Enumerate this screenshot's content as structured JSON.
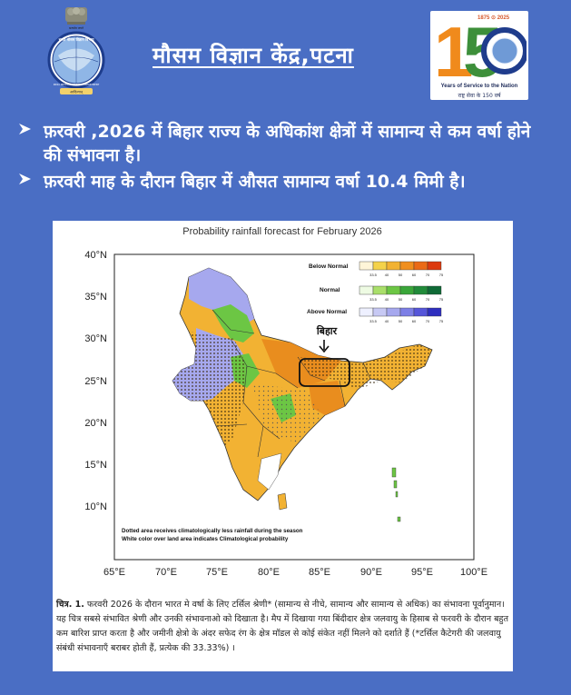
{
  "header": {
    "title": "मौसम विज्ञान केंद्र,पटना",
    "emblem_motto": "सत्यमेव जयते",
    "logo_text_top": "भारत मौसम विज्ञान विभाग",
    "logo_text_bottom": "INDIA METEOROLOGICAL DEPARTMENT",
    "logo_hindi_tag": "आदित्यात्",
    "badge_number": "150",
    "badge_years": "1875 ⊙ 2025",
    "badge_subtitle": "Years of Service to the Nation",
    "badge_hindi": "राष्ट्र सेवा के 150 वर्ष"
  },
  "bullets": [
    {
      "text": "फ़रवरी ,2026 में बिहार राज्य के अधिकांश क्षेत्रों में सामान्य से कम वर्षा होने की संभावना है।"
    },
    {
      "text": "फ़रवरी माह के दौरान बिहार में औसत सामान्य वर्षा 10.4 मिमी है।"
    }
  ],
  "map": {
    "title": "Probability rainfall forecast for February 2026",
    "bihar_label": "बिहार",
    "lat_labels": [
      "40°N",
      "35°N",
      "30°N",
      "25°N",
      "20°N",
      "15°N",
      "10°N"
    ],
    "lon_labels": [
      "65°E",
      "70°E",
      "75°E",
      "80°E",
      "85°E",
      "90°E",
      "95°E",
      "100°E"
    ],
    "legend": [
      {
        "label": "Below Normal",
        "ticks": [
          "33.5",
          "40",
          "50",
          "60",
          "70",
          "75"
        ],
        "colors": [
          "#fff5d8",
          "#f4d24a",
          "#f2b233",
          "#f08f1e",
          "#ea6a16",
          "#dc3a0e"
        ]
      },
      {
        "label": "Normal",
        "ticks": [
          "33.5",
          "40",
          "50",
          "60",
          "70",
          "75"
        ],
        "colors": [
          "#eefbe3",
          "#a9df6a",
          "#6cc644",
          "#3aa63a",
          "#218b3a",
          "#0f6a36"
        ]
      },
      {
        "label": "Above Normal",
        "ticks": [
          "33.5",
          "40",
          "50",
          "60",
          "70",
          "75"
        ],
        "colors": [
          "#eef0ff",
          "#c7c9f4",
          "#a6a8ee",
          "#7d7fe6",
          "#5656d9",
          "#2f2fbf"
        ]
      }
    ],
    "note_line1": "Dotted area receives climatologically less rainfall during the season",
    "note_line2": "White color over land area indicates Climatological probability",
    "colors": {
      "below": "#f2b233",
      "below_dark": "#e98d1e",
      "normal": "#6cc644",
      "above": "#a6a8ee",
      "boundary": "#333333"
    }
  },
  "caption": {
    "label": "चित्र. 1.",
    "text": "फरवरी 2026 के दौरान भारत मे वर्षा के लिए टर्सिल श्रेणी* (सामान्य से नीचे, सामान्य और सामान्य से अधिक) का संभावना पूर्वानुमान। यह चित्र सबसे संभावित श्रेणी और उनकी संभावनाओ को दिखाता है। मैप में दिखाया गया बिंदीदार क्षेत्र जलवायु के हिसाब से फरवरी के दौरान बहुत कम बारिश प्राप्त करता है और जमीनी क्षेत्रो के अंदर सफेद रंग के क्षेत्र मॉडल से कोई संकेत नहीं मिलने को दर्शाते हैं (*टर्सिल कैटेगरी की जलवायु संबंधी संभावनाएँ बराबर होती हैं, प्रत्येक की 33.33%) ।"
  }
}
